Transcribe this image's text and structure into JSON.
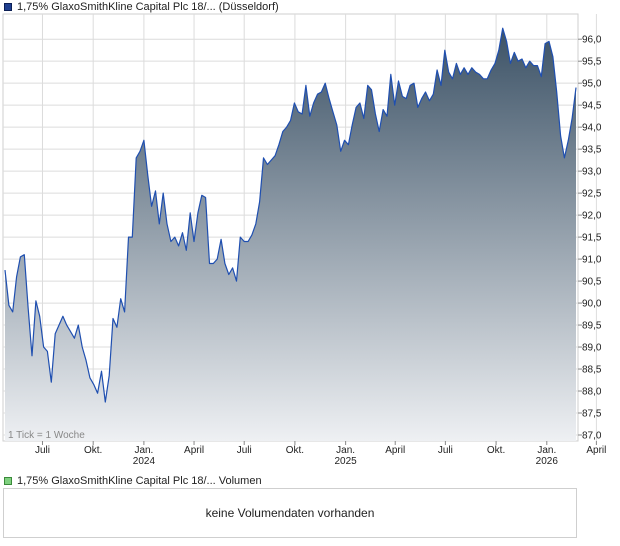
{
  "legend": {
    "price_series": "1,75% GlaxoSmithKline Capital Plc 18/... (Düsseldorf)",
    "volume_series": "1,75% GlaxoSmithKline Capital Plc 18/... Volumen"
  },
  "volume_panel": {
    "message": "keine Volumendaten vorhanden"
  },
  "colors": {
    "line": "#1f4fb0",
    "fill_top": "#3c5266",
    "fill_bottom": "#eef0f3",
    "grid": "#dcdcdc"
  },
  "chart_data": {
    "type": "area",
    "title": "",
    "xlabel": "",
    "ylabel": "",
    "ylim": [
      87.0,
      96.3
    ],
    "y_ticks": [
      "96,0",
      "95,5",
      "95,0",
      "94,5",
      "94,0",
      "93,5",
      "93,0",
      "92,5",
      "92,0",
      "91,5",
      "91,0",
      "90,5",
      "90,0",
      "89,5",
      "89,0",
      "88,5",
      "88,0",
      "87,5",
      "87,0"
    ],
    "x_ticks": [
      {
        "label": "Juli",
        "year": "",
        "date": "2023-07-01"
      },
      {
        "label": "Okt.",
        "year": "",
        "date": "2023-10-01"
      },
      {
        "label": "Jan.",
        "year": "2024",
        "date": "2024-01-01"
      },
      {
        "label": "April",
        "year": "",
        "date": "2024-04-01"
      },
      {
        "label": "Juli",
        "year": "",
        "date": "2024-07-01"
      },
      {
        "label": "Okt.",
        "year": "",
        "date": "2024-10-01"
      },
      {
        "label": "Jan.",
        "year": "2025",
        "date": "2025-01-01"
      },
      {
        "label": "April",
        "year": "",
        "date": "2025-04-01"
      },
      {
        "label": "Juli",
        "year": "",
        "date": "2025-07-01"
      },
      {
        "label": "Okt.",
        "year": "",
        "date": "2025-10-01"
      },
      {
        "label": "Jan.",
        "year": "2026",
        "date": "2026-01-01"
      },
      {
        "label": "April",
        "year": "",
        "date": "2026-04-01"
      }
    ],
    "tick_note": "1 Tick = 1 Woche",
    "grid": true,
    "series": [
      {
        "name": "1,75% GlaxoSmithKline Capital Plc 18/... (Düsseldorf)",
        "points": [
          [
            "2023-04-24",
            90.75
          ],
          [
            "2023-05-01",
            89.95
          ],
          [
            "2023-05-08",
            89.8
          ],
          [
            "2023-05-15",
            90.6
          ],
          [
            "2023-05-22",
            91.05
          ],
          [
            "2023-05-29",
            91.1
          ],
          [
            "2023-06-05",
            89.9
          ],
          [
            "2023-06-12",
            88.8
          ],
          [
            "2023-06-19",
            90.05
          ],
          [
            "2023-06-26",
            89.7
          ],
          [
            "2023-07-03",
            89.0
          ],
          [
            "2023-07-10",
            88.9
          ],
          [
            "2023-07-17",
            88.2
          ],
          [
            "2023-07-24",
            89.3
          ],
          [
            "2023-07-31",
            89.5
          ],
          [
            "2023-08-07",
            89.7
          ],
          [
            "2023-08-14",
            89.5
          ],
          [
            "2023-08-21",
            89.35
          ],
          [
            "2023-08-28",
            89.2
          ],
          [
            "2023-09-04",
            89.5
          ],
          [
            "2023-09-11",
            89.0
          ],
          [
            "2023-09-18",
            88.7
          ],
          [
            "2023-09-25",
            88.3
          ],
          [
            "2023-10-02",
            88.15
          ],
          [
            "2023-10-09",
            87.95
          ],
          [
            "2023-10-16",
            88.45
          ],
          [
            "2023-10-23",
            87.75
          ],
          [
            "2023-10-30",
            88.35
          ],
          [
            "2023-11-06",
            89.65
          ],
          [
            "2023-11-13",
            89.45
          ],
          [
            "2023-11-20",
            90.1
          ],
          [
            "2023-11-27",
            89.8
          ],
          [
            "2023-12-04",
            91.5
          ],
          [
            "2023-12-11",
            91.5
          ],
          [
            "2023-12-18",
            93.3
          ],
          [
            "2023-12-25",
            93.45
          ],
          [
            "2024-01-01",
            93.7
          ],
          [
            "2024-01-08",
            92.9
          ],
          [
            "2024-01-15",
            92.2
          ],
          [
            "2024-01-22",
            92.55
          ],
          [
            "2024-01-29",
            91.8
          ],
          [
            "2024-02-05",
            92.5
          ],
          [
            "2024-02-12",
            91.8
          ],
          [
            "2024-02-19",
            91.4
          ],
          [
            "2024-02-26",
            91.5
          ],
          [
            "2024-03-04",
            91.3
          ],
          [
            "2024-03-11",
            91.6
          ],
          [
            "2024-03-18",
            91.2
          ],
          [
            "2024-03-25",
            92.05
          ],
          [
            "2024-04-01",
            91.4
          ],
          [
            "2024-04-08",
            92.05
          ],
          [
            "2024-04-15",
            92.45
          ],
          [
            "2024-04-22",
            92.4
          ],
          [
            "2024-04-29",
            90.9
          ],
          [
            "2024-05-06",
            90.9
          ],
          [
            "2024-05-13",
            91.0
          ],
          [
            "2024-05-20",
            91.45
          ],
          [
            "2024-05-27",
            90.9
          ],
          [
            "2024-06-03",
            90.65
          ],
          [
            "2024-06-10",
            90.8
          ],
          [
            "2024-06-17",
            90.5
          ],
          [
            "2024-06-24",
            91.5
          ],
          [
            "2024-07-01",
            91.4
          ],
          [
            "2024-07-08",
            91.4
          ],
          [
            "2024-07-15",
            91.55
          ],
          [
            "2024-07-22",
            91.8
          ],
          [
            "2024-07-29",
            92.3
          ],
          [
            "2024-08-05",
            93.3
          ],
          [
            "2024-08-12",
            93.15
          ],
          [
            "2024-08-19",
            93.25
          ],
          [
            "2024-08-26",
            93.35
          ],
          [
            "2024-09-02",
            93.6
          ],
          [
            "2024-09-09",
            93.9
          ],
          [
            "2024-09-16",
            94.0
          ],
          [
            "2024-09-23",
            94.15
          ],
          [
            "2024-09-30",
            94.55
          ],
          [
            "2024-10-07",
            94.35
          ],
          [
            "2024-10-14",
            94.3
          ],
          [
            "2024-10-21",
            94.95
          ],
          [
            "2024-10-28",
            94.25
          ],
          [
            "2024-11-04",
            94.55
          ],
          [
            "2024-11-11",
            94.75
          ],
          [
            "2024-11-18",
            94.8
          ],
          [
            "2024-11-25",
            95.0
          ],
          [
            "2024-12-02",
            94.65
          ],
          [
            "2024-12-09",
            94.35
          ],
          [
            "2024-12-16",
            94.05
          ],
          [
            "2024-12-23",
            93.45
          ],
          [
            "2024-12-30",
            93.7
          ],
          [
            "2025-01-06",
            93.6
          ],
          [
            "2025-01-13",
            94.05
          ],
          [
            "2025-01-20",
            94.45
          ],
          [
            "2025-01-27",
            94.55
          ],
          [
            "2025-02-03",
            94.2
          ],
          [
            "2025-02-10",
            94.95
          ],
          [
            "2025-02-17",
            94.85
          ],
          [
            "2025-02-24",
            94.3
          ],
          [
            "2025-03-03",
            93.9
          ],
          [
            "2025-03-10",
            94.4
          ],
          [
            "2025-03-17",
            94.25
          ],
          [
            "2025-03-24",
            95.2
          ],
          [
            "2025-03-31",
            94.5
          ],
          [
            "2025-04-07",
            95.05
          ],
          [
            "2025-04-14",
            94.7
          ],
          [
            "2025-04-21",
            94.65
          ],
          [
            "2025-04-28",
            94.95
          ],
          [
            "2025-05-05",
            95.0
          ],
          [
            "2025-05-12",
            94.45
          ],
          [
            "2025-05-19",
            94.65
          ],
          [
            "2025-05-26",
            94.8
          ],
          [
            "2025-06-02",
            94.6
          ],
          [
            "2025-06-09",
            94.75
          ],
          [
            "2025-06-16",
            95.3
          ],
          [
            "2025-06-23",
            94.95
          ],
          [
            "2025-06-30",
            95.75
          ],
          [
            "2025-07-07",
            95.25
          ],
          [
            "2025-07-14",
            95.1
          ],
          [
            "2025-07-21",
            95.45
          ],
          [
            "2025-07-28",
            95.2
          ],
          [
            "2025-08-04",
            95.35
          ],
          [
            "2025-08-11",
            95.2
          ],
          [
            "2025-08-18",
            95.35
          ],
          [
            "2025-08-25",
            95.25
          ],
          [
            "2025-09-01",
            95.2
          ],
          [
            "2025-09-08",
            95.1
          ],
          [
            "2025-09-15",
            95.1
          ],
          [
            "2025-09-22",
            95.3
          ],
          [
            "2025-09-29",
            95.45
          ],
          [
            "2025-10-06",
            95.75
          ],
          [
            "2025-10-13",
            96.25
          ],
          [
            "2025-10-20",
            95.95
          ],
          [
            "2025-10-27",
            95.45
          ],
          [
            "2025-11-03",
            95.7
          ],
          [
            "2025-11-10",
            95.5
          ],
          [
            "2025-11-17",
            95.55
          ],
          [
            "2025-11-24",
            95.35
          ],
          [
            "2025-12-01",
            95.5
          ],
          [
            "2025-12-08",
            95.4
          ],
          [
            "2025-12-15",
            95.4
          ],
          [
            "2025-12-22",
            95.15
          ],
          [
            "2025-12-29",
            95.9
          ],
          [
            "2026-01-05",
            95.95
          ],
          [
            "2026-01-12",
            95.6
          ],
          [
            "2026-01-19",
            94.8
          ],
          [
            "2026-01-26",
            93.8
          ],
          [
            "2026-02-02",
            93.3
          ],
          [
            "2026-02-09",
            93.7
          ],
          [
            "2026-02-16",
            94.2
          ],
          [
            "2026-02-23",
            94.9
          ]
        ]
      }
    ]
  }
}
